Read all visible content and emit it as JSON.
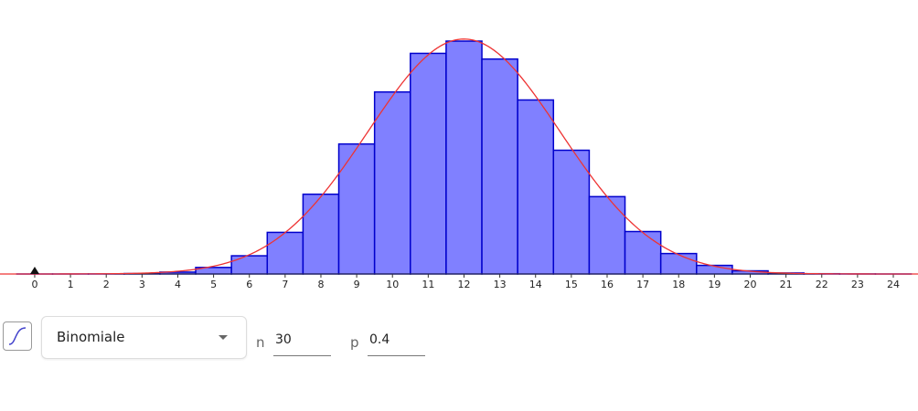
{
  "chart_data": {
    "type": "bar",
    "x": [
      0,
      1,
      2,
      3,
      4,
      5,
      6,
      7,
      8,
      9,
      10,
      11,
      12,
      13,
      14,
      15,
      16,
      17,
      18,
      19,
      20,
      21,
      22,
      23,
      24
    ],
    "values": [
      2.2e-07,
      4.4e-06,
      4.28e-05,
      0.000266,
      0.001197,
      0.004149,
      0.01153,
      0.02634,
      0.05049,
      0.08228,
      0.11519,
      0.13962,
      0.14738,
      0.13604,
      0.11013,
      0.07831,
      0.04895,
      0.02687,
      0.01294,
      0.005448,
      0.001998,
      0.000634,
      0.000173,
      4.01e-05,
      7.8e-06
    ],
    "color": "#8080ff",
    "edge_color": "#0000cc",
    "curve_color": "#ee3333",
    "xlim": [
      -0.97,
      24.69
    ],
    "ylim": [
      0,
      0.1734
    ],
    "xticks": [
      0,
      1,
      2,
      3,
      4,
      5,
      6,
      7,
      8,
      9,
      10,
      11,
      12,
      13,
      14,
      15,
      16,
      17,
      18,
      19,
      20,
      21,
      22,
      23,
      24
    ]
  },
  "controls": {
    "distribution": "Binomiale",
    "parameters": [
      {
        "name": "n",
        "value": 30
      },
      {
        "name": "p",
        "value": 0.4
      }
    ]
  }
}
